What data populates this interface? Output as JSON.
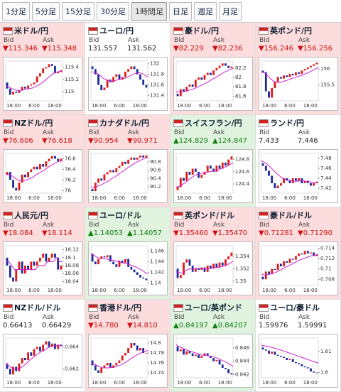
{
  "tabs": [
    "1分足",
    "5分足",
    "15分足",
    "30分足",
    "1時間足",
    "日足",
    "週足",
    "月足"
  ],
  "selected_tab": 4,
  "labels": {
    "bid": "Bid",
    "ask": "Ask"
  },
  "x_labels": [
    "18:00",
    "6:00",
    "18:00"
  ],
  "panels": [
    {
      "title": "米ドル/円",
      "background": "#fcdcdc",
      "text_color": "#d01010",
      "bid": "▼115.346",
      "ask": "▼115.348",
      "chart": {
        "type": "candlestick",
        "ylim": [
          114.85,
          115.5
        ],
        "yticks": [
          115,
          115.2,
          115.4
        ],
        "values": [
          115.15,
          115.05,
          114.95,
          115.0,
          114.98,
          115.02,
          115.08,
          115.05,
          115.1,
          115.12,
          115.15,
          115.25,
          115.3,
          115.38,
          115.4,
          115.45,
          115.42,
          115.3,
          115.32,
          115.35
        ],
        "ma": [
          115.1,
          115.08,
          115.05,
          115.03,
          115.02,
          115.02,
          115.03,
          115.04,
          115.05,
          115.06,
          115.08,
          115.11,
          115.14,
          115.18,
          115.22,
          115.26,
          115.3,
          115.32,
          115.33,
          115.34
        ]
      }
    },
    {
      "title": "ユーロ/円",
      "background": "#ffffff",
      "text_color": "#222222",
      "bid": "131.557",
      "ask": "131.562",
      "chart": {
        "type": "candlestick",
        "ylim": [
          131.3,
          132.05
        ],
        "yticks": [
          131.4,
          131.6,
          131.8,
          132
        ],
        "values": [
          131.95,
          131.9,
          131.8,
          131.6,
          131.5,
          131.55,
          131.7,
          131.65,
          131.75,
          131.8,
          131.7,
          131.75,
          131.85,
          131.9,
          131.95,
          131.9,
          131.8,
          131.7,
          131.6,
          131.55
        ],
        "ma": [
          131.85,
          131.84,
          131.82,
          131.78,
          131.73,
          131.7,
          131.68,
          131.67,
          131.68,
          131.7,
          131.71,
          131.72,
          131.74,
          131.77,
          131.8,
          131.82,
          131.83,
          131.82,
          131.79,
          131.75
        ]
      }
    },
    {
      "title": "豪ドル/円",
      "background": "#fcdcdc",
      "text_color": "#d01010",
      "bid": "▼82.229",
      "ask": "▼82.236",
      "chart": {
        "type": "candlestick",
        "ylim": [
          81.5,
          82.35
        ],
        "yticks": [
          81.6,
          81.8,
          82,
          82.2
        ],
        "values": [
          81.65,
          81.6,
          81.75,
          81.7,
          81.8,
          81.85,
          81.8,
          81.95,
          82.0,
          81.95,
          82.05,
          82.1,
          82.05,
          82.15,
          82.2,
          82.25,
          82.3,
          82.25,
          82.2,
          82.23
        ],
        "ma": [
          81.7,
          81.69,
          81.69,
          81.7,
          81.72,
          81.74,
          81.76,
          81.79,
          81.82,
          81.85,
          81.88,
          81.92,
          81.96,
          81.99,
          82.03,
          82.07,
          82.11,
          82.14,
          82.17,
          82.19
        ]
      }
    },
    {
      "title": "英ポンド/円",
      "background": "#fcdcdc",
      "text_color": "#d01010",
      "bid": "▼156.246",
      "ask": "▼156.256",
      "chart": {
        "type": "candlestick",
        "ylim": [
          155.0,
          156.25
        ],
        "yticks": [
          155.5,
          156
        ],
        "values": [
          155.95,
          155.9,
          155.3,
          155.1,
          155.4,
          155.6,
          155.75,
          155.7,
          155.8,
          155.75,
          155.85,
          155.8,
          155.9,
          155.85,
          155.95,
          156.0,
          156.05,
          156.1,
          156.15,
          156.2
        ],
        "ma": [
          155.9,
          155.88,
          155.8,
          155.7,
          155.62,
          155.58,
          155.58,
          155.6,
          155.63,
          155.66,
          155.7,
          155.73,
          155.76,
          155.79,
          155.82,
          155.86,
          155.9,
          155.95,
          156.0,
          156.05
        ]
      }
    },
    {
      "title": "NZドル/円",
      "background": "#fcdcdc",
      "text_color": "#d01010",
      "bid": "▼76.606",
      "ask": "▼76.618",
      "chart": {
        "type": "candlestick",
        "ylim": [
          75.95,
          76.7
        ],
        "yticks": [
          76,
          76.2,
          76.4,
          76.6
        ],
        "values": [
          76.3,
          76.35,
          76.2,
          76.05,
          76.0,
          76.15,
          76.3,
          76.25,
          76.35,
          76.4,
          76.45,
          76.4,
          76.5,
          76.45,
          76.55,
          76.6,
          76.65,
          76.6,
          76.55,
          76.6
        ],
        "ma": [
          76.3,
          76.3,
          76.28,
          76.24,
          76.2,
          76.18,
          76.19,
          76.2,
          76.22,
          76.25,
          76.29,
          76.32,
          76.36,
          76.39,
          76.43,
          76.47,
          76.5,
          76.53,
          76.55,
          76.57
        ]
      }
    },
    {
      "title": "カナダドル/円",
      "background": "#fcdcdc",
      "text_color": "#d01010",
      "bid": "▼90.954",
      "ask": "▼90.971",
      "chart": {
        "type": "candlestick",
        "ylim": [
          90.05,
          91.0
        ],
        "yticks": [
          90.2,
          90.4,
          90.6,
          90.8
        ],
        "values": [
          90.15,
          90.1,
          90.3,
          90.4,
          90.35,
          90.5,
          90.55,
          90.6,
          90.55,
          90.65,
          90.7,
          90.8,
          90.75,
          90.85,
          90.9,
          90.85,
          90.9,
          90.95,
          90.9,
          90.95
        ],
        "ma": [
          90.2,
          90.19,
          90.21,
          90.24,
          90.27,
          90.31,
          90.35,
          90.4,
          90.44,
          90.49,
          90.54,
          90.59,
          90.64,
          90.69,
          90.74,
          90.78,
          90.82,
          90.85,
          90.88,
          90.9
        ]
      }
    },
    {
      "title": "スイスフラン/円",
      "background": "#dff3df",
      "text_color": "#108010",
      "bid": "▲124.829",
      "ask": "▲124.847",
      "chart": {
        "type": "candlestick",
        "ylim": [
          124.25,
          124.9
        ],
        "yticks": [
          124.4,
          124.6,
          124.8
        ],
        "values": [
          124.3,
          124.35,
          124.5,
          124.45,
          124.6,
          124.55,
          124.65,
          124.6,
          124.5,
          124.55,
          124.6,
          124.7,
          124.65,
          124.6,
          124.7,
          124.65,
          124.75,
          124.7,
          124.8,
          124.85
        ],
        "ma": [
          124.35,
          124.36,
          124.39,
          124.42,
          124.46,
          124.5,
          124.53,
          124.56,
          124.57,
          124.58,
          124.59,
          124.6,
          124.61,
          124.62,
          124.63,
          124.65,
          124.67,
          124.69,
          124.72,
          124.75
        ]
      }
    },
    {
      "title": "ランド/円",
      "background": "#ffffff",
      "text_color": "#222222",
      "bid": "7.433",
      "ask": "7.446",
      "chart": {
        "type": "candlestick",
        "ylim": [
          7.41,
          7.49
        ],
        "yticks": [
          7.42,
          7.44,
          7.46,
          7.48
        ],
        "values": [
          7.47,
          7.465,
          7.455,
          7.445,
          7.43,
          7.42,
          7.425,
          7.43,
          7.44,
          7.435,
          7.43,
          7.44,
          7.435,
          7.44,
          7.43,
          7.435,
          7.43,
          7.425,
          7.43,
          7.433
        ],
        "ma": [
          7.475,
          7.472,
          7.468,
          7.462,
          7.456,
          7.45,
          7.445,
          7.44,
          7.438,
          7.436,
          7.435,
          7.434,
          7.434,
          7.435,
          7.435,
          7.434,
          7.433,
          7.432,
          7.431,
          7.431
        ]
      }
    },
    {
      "title": "人民元/円",
      "background": "#fcdcdc",
      "text_color": "#d01010",
      "bid": "▼18.084",
      "ask": "▼18.114",
      "chart": {
        "type": "candlestick",
        "ylim": [
          18.03,
          18.13
        ],
        "yticks": [
          18.04,
          18.06,
          18.08,
          18.1,
          18.12
        ],
        "values": [
          18.1,
          18.08,
          18.05,
          18.04,
          18.07,
          18.09,
          18.06,
          18.08,
          18.07,
          18.09,
          18.08,
          18.09,
          18.1,
          18.11,
          18.09,
          18.1,
          18.11,
          18.1,
          18.07,
          18.08
        ],
        "ma": [
          18.09,
          18.09,
          18.08,
          18.07,
          18.07,
          18.07,
          18.07,
          18.07,
          18.07,
          18.07,
          18.07,
          18.08,
          18.08,
          18.08,
          18.09,
          18.09,
          18.09,
          18.1,
          18.09,
          18.09
        ]
      }
    },
    {
      "title": "ユーロ/ドル",
      "background": "#dff3df",
      "text_color": "#108010",
      "bid": "▲1.14053",
      "ask": "▲1.14057",
      "chart": {
        "type": "candlestick",
        "ylim": [
          1.1395,
          1.147
        ],
        "yticks": [
          1.14,
          1.142,
          1.144,
          1.146
        ],
        "values": [
          1.1455,
          1.144,
          1.1435,
          1.1445,
          1.145,
          1.1448,
          1.1452,
          1.144,
          1.1435,
          1.143,
          1.1442,
          1.1438,
          1.1445,
          1.143,
          1.1425,
          1.142,
          1.1415,
          1.141,
          1.1408,
          1.1405
        ],
        "ma": [
          1.1455,
          1.1452,
          1.1448,
          1.1446,
          1.1446,
          1.1445,
          1.1444,
          1.1443,
          1.1442,
          1.144,
          1.1438,
          1.1437,
          1.1436,
          1.1434,
          1.1432,
          1.143,
          1.1427,
          1.1424,
          1.142,
          1.1417
        ]
      }
    },
    {
      "title": "英ポンド/ドル",
      "background": "#fcdcdc",
      "text_color": "#d01010",
      "bid": "▼1.35460",
      "ask": "▼1.35470",
      "chart": {
        "type": "candlestick",
        "ylim": [
          1.3493,
          1.3557
        ],
        "yticks": [
          1.35,
          1.352,
          1.354
        ],
        "values": [
          1.352,
          1.3505,
          1.351,
          1.353,
          1.3535,
          1.3525,
          1.3515,
          1.352,
          1.3518,
          1.3522,
          1.3515,
          1.3525,
          1.352,
          1.3528,
          1.3522,
          1.353,
          1.3525,
          1.3535,
          1.354,
          1.3546
        ],
        "ma": [
          1.3515,
          1.3514,
          1.3513,
          1.3516,
          1.3519,
          1.352,
          1.352,
          1.3521,
          1.3521,
          1.3521,
          1.352,
          1.352,
          1.3521,
          1.3522,
          1.3522,
          1.3523,
          1.3524,
          1.3526,
          1.3529,
          1.3532
        ]
      }
    },
    {
      "title": "豪ドル/ドル",
      "background": "#fcdcdc",
      "text_color": "#d01010",
      "bid": "▼0.71281",
      "ask": "▼0.71290",
      "chart": {
        "type": "candlestick",
        "ylim": [
          0.7068,
          0.7145
        ],
        "yticks": [
          0.708,
          0.71,
          0.712,
          0.714
        ],
        "values": [
          0.7085,
          0.708,
          0.7095,
          0.709,
          0.71,
          0.7098,
          0.711,
          0.7105,
          0.7115,
          0.7112,
          0.712,
          0.7118,
          0.7125,
          0.713,
          0.7128,
          0.7135,
          0.713,
          0.7132,
          0.7125,
          0.7128
        ],
        "ma": [
          0.709,
          0.7088,
          0.7089,
          0.709,
          0.7092,
          0.7094,
          0.7097,
          0.71,
          0.7103,
          0.7106,
          0.7109,
          0.7112,
          0.7115,
          0.7118,
          0.712,
          0.7122,
          0.7124,
          0.7126,
          0.7127,
          0.7128
        ]
      }
    },
    {
      "title": "NZドル/ドル",
      "background": "#ffffff",
      "text_color": "#222222",
      "bid": "0.66413",
      "ask": "0.66429",
      "chart": {
        "type": "candlestick",
        "ylim": [
          0.6612,
          0.6648
        ],
        "yticks": [
          0.662,
          0.664
        ],
        "values": [
          0.6625,
          0.662,
          0.6615,
          0.6622,
          0.6618,
          0.6625,
          0.663,
          0.6628,
          0.6635,
          0.6632,
          0.6638,
          0.664,
          0.6636,
          0.6642,
          0.6645,
          0.664,
          0.6643,
          0.6638,
          0.6642,
          0.6641
        ],
        "ma": [
          0.6625,
          0.6623,
          0.6621,
          0.662,
          0.662,
          0.6621,
          0.6623,
          0.6625,
          0.6628,
          0.663,
          0.6632,
          0.6634,
          0.6636,
          0.6637,
          0.6639,
          0.664,
          0.6641,
          0.6641,
          0.6641,
          0.6641
        ]
      }
    },
    {
      "title": "香港ドル/円",
      "background": "#fcdcdc",
      "text_color": "#d01010",
      "bid": "▼14.780",
      "ask": "▼14.810",
      "chart": {
        "type": "candlestick",
        "ylim": [
          14.73,
          14.81
        ],
        "yticks": [
          14.74,
          14.76,
          14.78,
          14.8
        ],
        "values": [
          14.765,
          14.755,
          14.745,
          14.74,
          14.75,
          14.755,
          14.76,
          14.75,
          14.755,
          14.76,
          14.765,
          14.775,
          14.78,
          14.79,
          14.8,
          14.795,
          14.785,
          14.79,
          14.78,
          14.78
        ],
        "ma": [
          14.76,
          14.758,
          14.755,
          14.752,
          14.75,
          14.75,
          14.75,
          14.751,
          14.752,
          14.754,
          14.756,
          14.759,
          14.763,
          14.767,
          14.771,
          14.775,
          14.778,
          14.781,
          14.783,
          14.785
        ]
      }
    },
    {
      "title": "ユーロ/英ポンド",
      "background": "#dff3df",
      "text_color": "#108010",
      "bid": "▲0.84197",
      "ask": "▲0.84207",
      "chart": {
        "type": "candlestick",
        "ylim": [
          0.8415,
          0.8475
        ],
        "yticks": [
          0.842,
          0.844,
          0.846
        ],
        "values": [
          0.8462,
          0.8455,
          0.8458,
          0.845,
          0.8455,
          0.8452,
          0.8448,
          0.845,
          0.8445,
          0.8448,
          0.8452,
          0.8448,
          0.8445,
          0.844,
          0.8442,
          0.8435,
          0.843,
          0.8428,
          0.8422,
          0.842
        ],
        "ma": [
          0.8465,
          0.8462,
          0.846,
          0.8458,
          0.8456,
          0.8455,
          0.8453,
          0.8452,
          0.845,
          0.8449,
          0.8449,
          0.8448,
          0.8447,
          0.8446,
          0.8444,
          0.8442,
          0.844,
          0.8438,
          0.8435,
          0.8432
        ]
      }
    },
    {
      "title": "ユーロ/豪ドル",
      "background": "#ffffff",
      "text_color": "#222222",
      "bid": "1.59976",
      "ask": "1.59991",
      "chart": {
        "type": "candlestick",
        "ylim": [
          1.5975,
          1.6165
        ],
        "yticks": [
          1.6,
          1.61
        ],
        "values": [
          1.612,
          1.611,
          1.6105,
          1.609,
          1.61,
          1.6085,
          1.608,
          1.6075,
          1.607,
          1.606,
          1.6065,
          1.605,
          1.6045,
          1.604,
          1.603,
          1.6025,
          1.602,
          1.6005,
          1.6,
          1.5998
        ],
        "ma": [
          1.613,
          1.6128,
          1.6125,
          1.6122,
          1.6118,
          1.6114,
          1.611,
          1.6105,
          1.61,
          1.6095,
          1.609,
          1.6085,
          1.608,
          1.6075,
          1.607,
          1.6065,
          1.606,
          1.6055,
          1.605,
          1.6045
        ]
      }
    }
  ]
}
